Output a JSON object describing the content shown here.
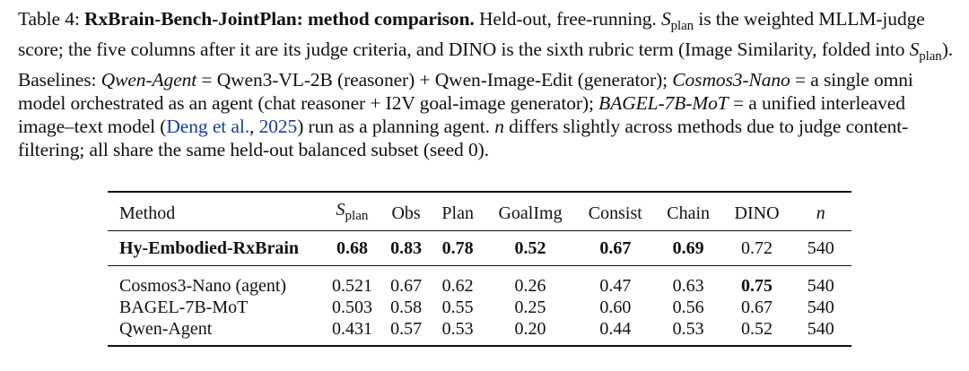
{
  "caption": {
    "label": "Table 4:",
    "title": "RxBrain-Bench-JointPlan: method comparison.",
    "s1": " Held-out, free-running. ",
    "s_var": "S",
    "s_sub": "plan",
    "s2": " is the weighted MLLM-judge score; the five columns after it are its judge criteria, and DINO is the sixth rubric term (Image Similarity, folded into ",
    "s3": "). Baselines: ",
    "b1_name": "Qwen-Agent",
    "b1_desc": " = Qwen3-VL-2B (reasoner) + Qwen-Image-Edit (generator); ",
    "b2_name": "Cosmos3-Nano",
    "b2_desc": " = a single omni model orchestrated as an agent (chat reasoner + I2V goal-image generator); ",
    "b3_name": "BAGEL-7B-MoT",
    "b3_desc": " = a unified interleaved image–text model (",
    "cite_authors": "Deng et al.",
    "cite_sep": ", ",
    "cite_year": "2025",
    "s4": ") run as a planning agent. ",
    "n_var": "n",
    "s5": " differs slightly across methods due to judge content-filtering; all share the same held-out balanced subset (seed 0)."
  },
  "table": {
    "header": {
      "method": "Method",
      "splan_var": "S",
      "splan_sub": "plan",
      "obs": "Obs",
      "plan": "Plan",
      "goalimg": "GoalImg",
      "consist": "Consist",
      "chain": "Chain",
      "dino": "DINO",
      "n": "n"
    },
    "rows_top": [
      {
        "method": "Hy-Embodied-RxBrain",
        "splan": "0.68",
        "obs": "0.83",
        "plan": "0.78",
        "goalimg": "0.52",
        "consist": "0.67",
        "chain": "0.69",
        "dino": "0.72",
        "n": "540"
      }
    ],
    "rows_baselines": [
      {
        "method": "Cosmos3-Nano (agent)",
        "splan": "0.521",
        "obs": "0.67",
        "plan": "0.62",
        "goalimg": "0.26",
        "consist": "0.47",
        "chain": "0.63",
        "dino": "0.75",
        "n": "540"
      },
      {
        "method": "BAGEL-7B-MoT",
        "splan": "0.503",
        "obs": "0.58",
        "plan": "0.55",
        "goalimg": "0.25",
        "consist": "0.60",
        "chain": "0.56",
        "dino": "0.67",
        "n": "540"
      },
      {
        "method": "Qwen-Agent",
        "splan": "0.431",
        "obs": "0.57",
        "plan": "0.53",
        "goalimg": "0.20",
        "consist": "0.44",
        "chain": "0.53",
        "dino": "0.52",
        "n": "540"
      }
    ]
  }
}
